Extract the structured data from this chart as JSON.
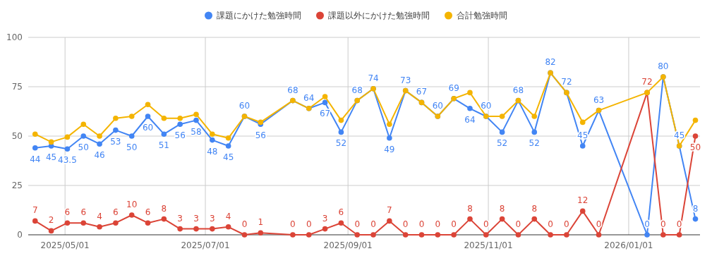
{
  "chart_data": {
    "type": "line",
    "x": [
      "2025-04-18",
      "2025-04-25",
      "2025-05-02",
      "2025-05-09",
      "2025-05-16",
      "2025-05-23",
      "2025-05-30",
      "2025-06-06",
      "2025-06-13",
      "2025-06-20",
      "2025-06-27",
      "2025-07-04",
      "2025-07-11",
      "2025-07-18",
      "2025-07-25",
      "2025-08-08",
      "2025-08-15",
      "2025-08-22",
      "2025-08-29",
      "2025-09-05",
      "2025-09-12",
      "2025-09-19",
      "2025-09-26",
      "2025-10-03",
      "2025-10-10",
      "2025-10-17",
      "2025-10-24",
      "2025-10-31",
      "2025-11-07",
      "2025-11-14",
      "2025-11-21",
      "2025-11-28",
      "2025-12-05",
      "2025-12-12",
      "2025-12-19",
      "2026-01-09",
      "2026-01-16",
      "2026-01-23",
      "2026-01-30"
    ],
    "series": [
      {
        "name": "課題にかけた勉強時間",
        "color": "#4285f4",
        "values": [
          44,
          45,
          43.5,
          50,
          46,
          53,
          50,
          60,
          51,
          56,
          58,
          48,
          45,
          60,
          56,
          68,
          64,
          67,
          52,
          68,
          74,
          49,
          73,
          67,
          60,
          69,
          64,
          60,
          52,
          68,
          52,
          82,
          72,
          45,
          63,
          0,
          80,
          45,
          8
        ],
        "value_labels": [
          "44",
          "45",
          "43.5",
          "50",
          "46",
          "53",
          "50",
          "60",
          "51",
          "56",
          "58",
          "48",
          "45",
          "60",
          "56",
          "68",
          "64",
          "67",
          "52",
          "68",
          "74",
          "49",
          "73",
          "67",
          "60",
          "69",
          "64",
          "60",
          "52",
          "68",
          "52",
          "82",
          "72",
          "45",
          "63",
          "0",
          "80",
          "45",
          "8"
        ]
      },
      {
        "name": "課題以外にかけた勉強時間",
        "color": "#db4437",
        "values": [
          7,
          2,
          6,
          6,
          4,
          6,
          10,
          6,
          8,
          3,
          3,
          3,
          4,
          0,
          1,
          0,
          0,
          3,
          6,
          0,
          0,
          7,
          0,
          0,
          0,
          0,
          8,
          0,
          8,
          0,
          8,
          0,
          0,
          12,
          0,
          72,
          0,
          0,
          50
        ],
        "value_labels": [
          "7",
          "2",
          "6",
          "6",
          "4",
          "6",
          "10",
          "6",
          "8",
          "3",
          "3",
          "3",
          "4",
          "0",
          "1",
          "0",
          "0",
          "3",
          "6",
          "0",
          "0",
          "7",
          "0",
          "0",
          "0",
          "0",
          "8",
          "0",
          "8",
          "0",
          "8",
          "0",
          "0",
          "12",
          "0",
          "72",
          "0",
          "0",
          "50"
        ]
      },
      {
        "name": "合計勉強時間",
        "color": "#f4b400",
        "values": [
          51,
          47,
          49.5,
          56,
          50,
          59,
          60,
          66,
          59,
          59,
          61,
          51,
          49,
          60,
          57,
          68,
          64,
          70,
          58,
          68,
          74,
          56,
          73,
          67,
          60,
          69,
          72,
          60,
          60,
          68,
          60,
          82,
          72,
          57,
          63,
          72,
          80,
          45,
          58
        ]
      }
    ],
    "xlim": [
      "2025-04-15",
      "2026-02-01"
    ],
    "xticks": [
      {
        "value": "2025-05-01",
        "label": "2025/05/01"
      },
      {
        "value": "2025-07-01",
        "label": "2025/07/01"
      },
      {
        "value": "2025-09-01",
        "label": "2025/09/01"
      },
      {
        "value": "2025-11-01",
        "label": "2025/11/01"
      },
      {
        "value": "2026-01-01",
        "label": "2026/01/01"
      }
    ],
    "ylim": [
      0,
      100
    ],
    "yticks": [
      0,
      25,
      50,
      75,
      100
    ],
    "grid": true,
    "legend": "top",
    "marker": "circle"
  }
}
